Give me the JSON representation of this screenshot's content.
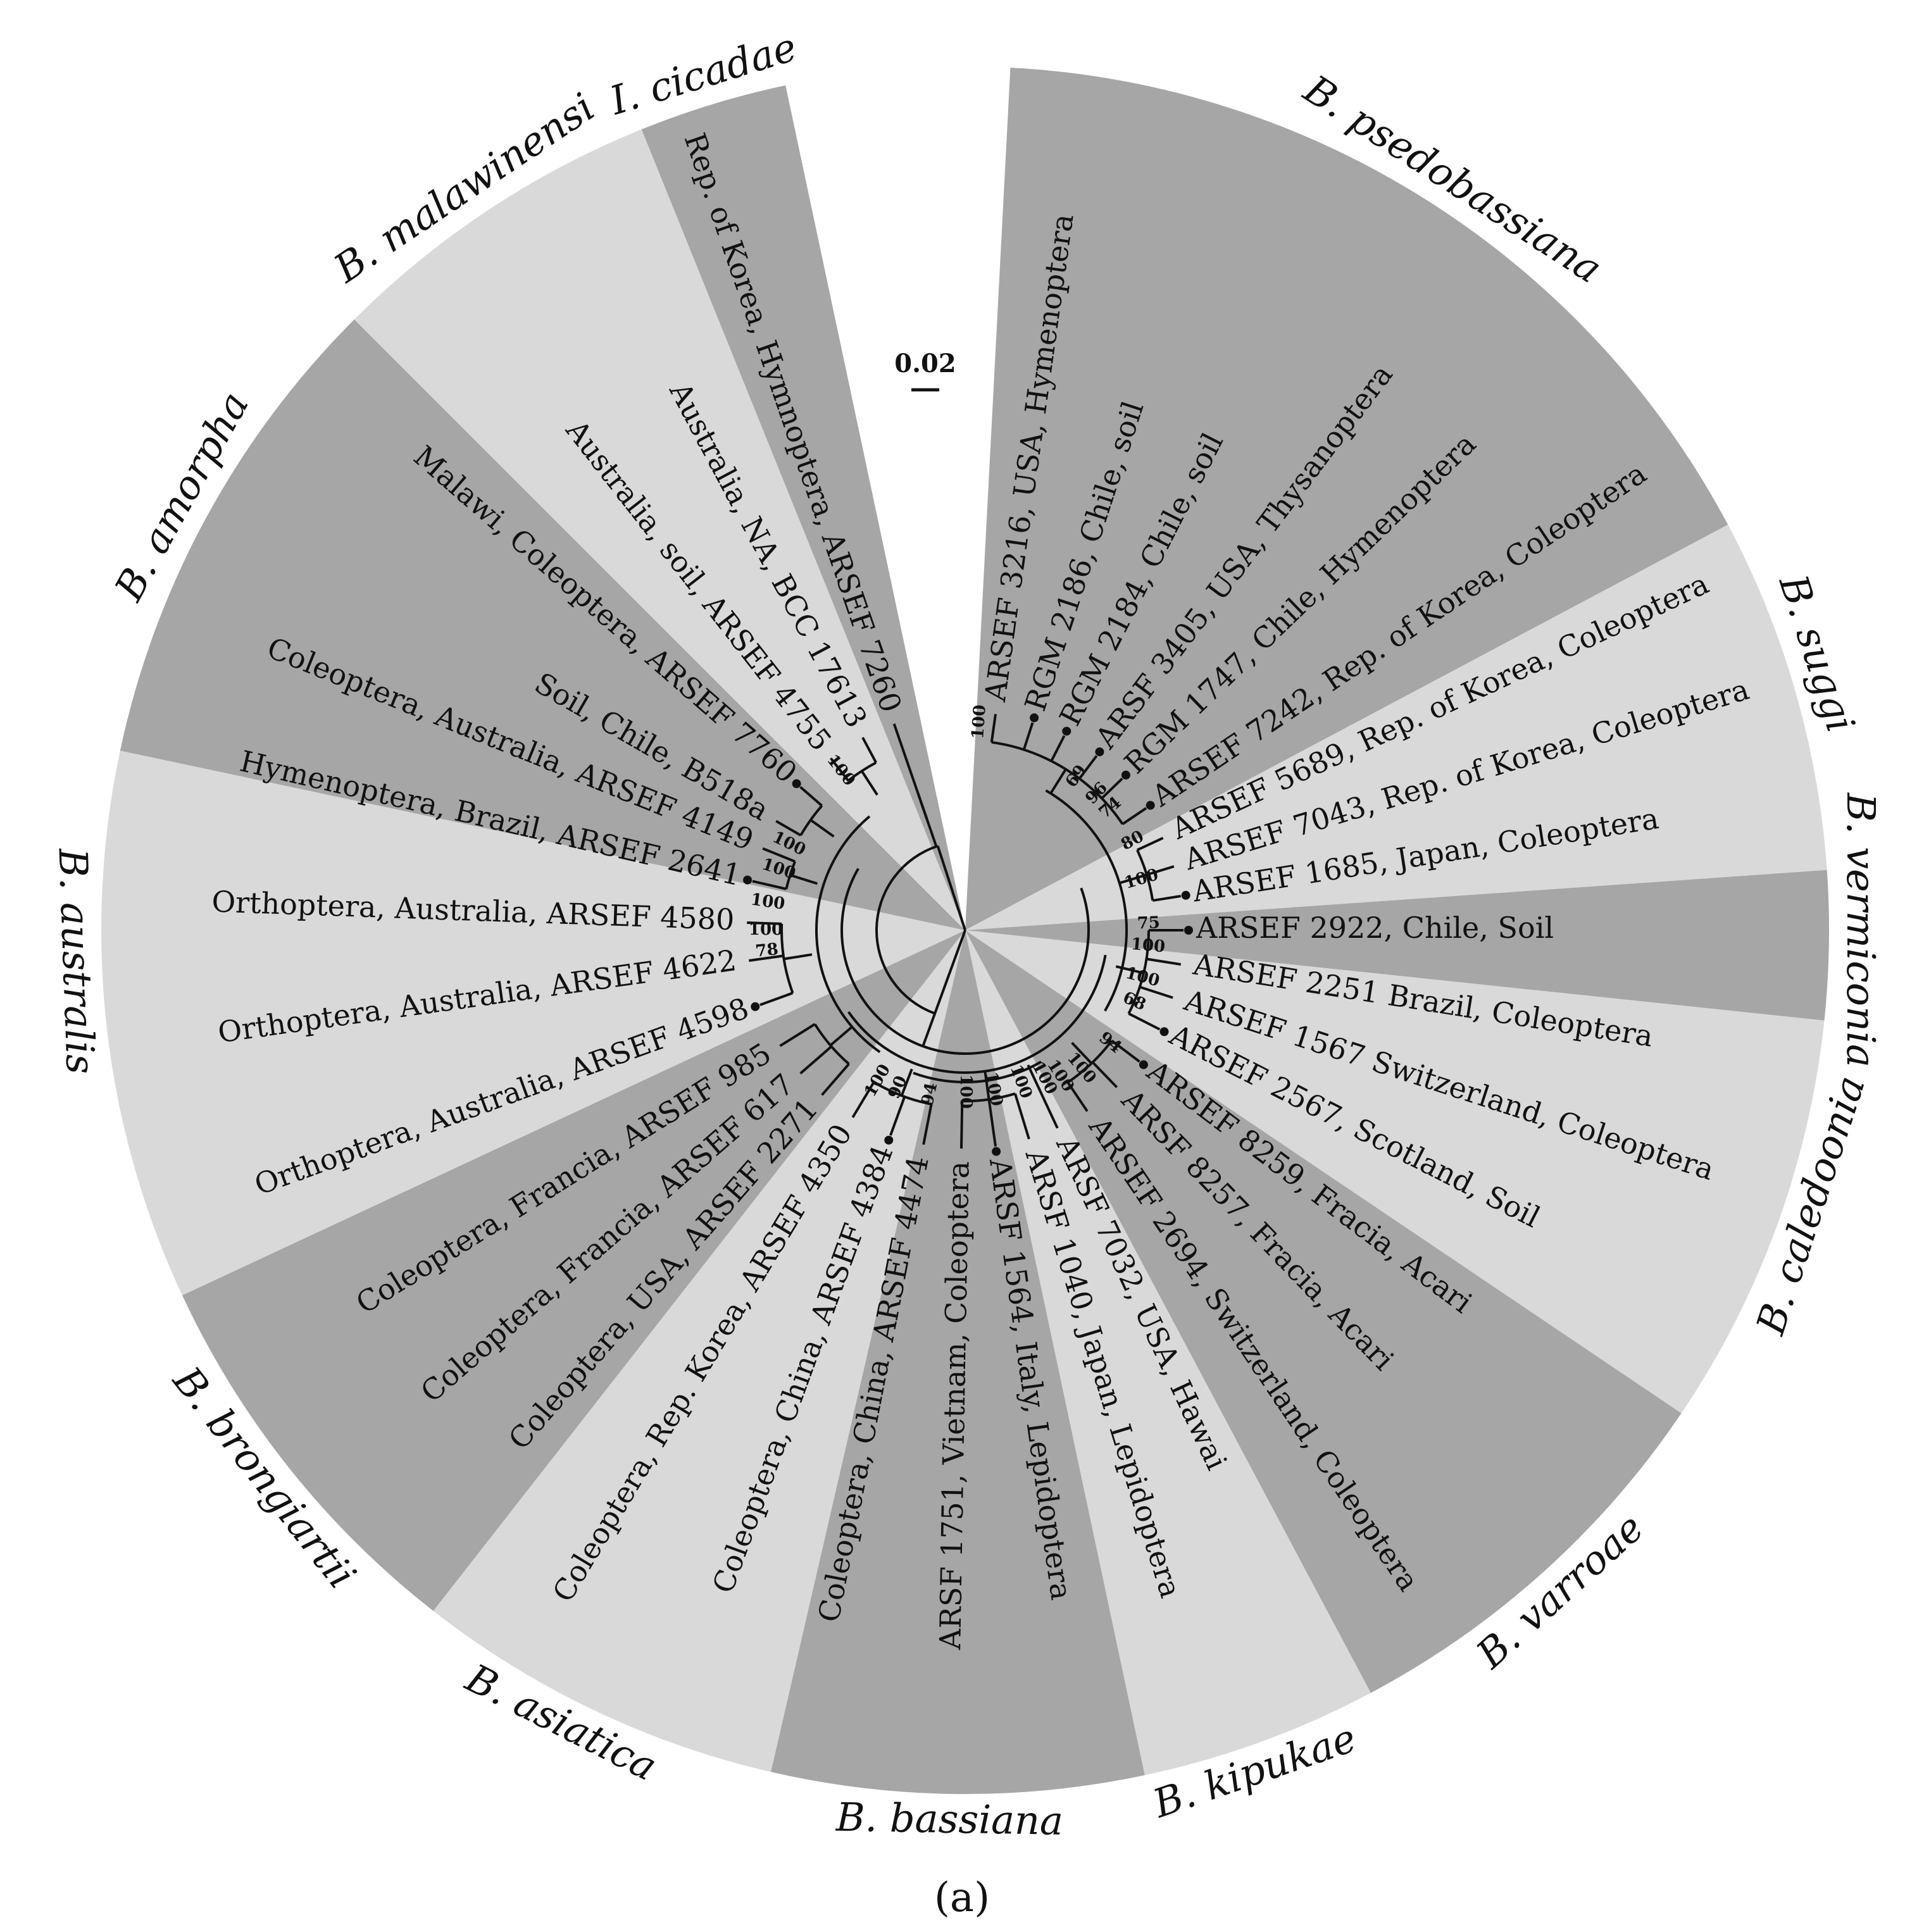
{
  "scale_bar": {
    "label": "0.02"
  },
  "panel_label": "(a)",
  "clades": [
    {
      "name": "B. psedobassiana",
      "shade": "#a6a6a6"
    },
    {
      "name": "B. suggi",
      "shade": "#d9d9d9"
    },
    {
      "name": "B. vermiconia",
      "shade": "#a6a6a6"
    },
    {
      "name": "B. caledoonia",
      "shade": "#d9d9d9"
    },
    {
      "name": "B. varroae",
      "shade": "#a6a6a6"
    },
    {
      "name": "B. kipukae",
      "shade": "#d9d9d9"
    },
    {
      "name": "B. bassiana",
      "shade": "#a6a6a6"
    },
    {
      "name": "B. asiatica",
      "shade": "#d9d9d9"
    },
    {
      "name": "B. brongiartii",
      "shade": "#a6a6a6"
    },
    {
      "name": "B. australis",
      "shade": "#d9d9d9"
    },
    {
      "name": "B. amorpha",
      "shade": "#a6a6a6"
    },
    {
      "name": "B. malawinensi",
      "shade": "#d9d9d9"
    },
    {
      "name": "I. cicadae",
      "shade": "#a6a6a6"
    }
  ],
  "leaves": [
    {
      "label": "ARSEF 3216, USA, Hymenoptera",
      "dot": false
    },
    {
      "label": "RGM 2186, Chile, soil",
      "dot": true
    },
    {
      "label": "RGM 2184, Chile, soil",
      "dot": true
    },
    {
      "label": "ARSF 3405, USA, Thysanoptera",
      "dot": true
    },
    {
      "label": "RGM 1747, Chile, Hymenoptera",
      "dot": true
    },
    {
      "label": "ARSEF 7242, Rep. of Korea, Coleoptera",
      "dot": true
    },
    {
      "label": "ARSEF 5689, Rep. of Korea, Coleoptera",
      "dot": false
    },
    {
      "label": "ARSEF 7043, Rep. of Korea, Coleoptera",
      "dot": false
    },
    {
      "label": "ARSEF 1685, Japan, Coleoptera",
      "dot": true
    },
    {
      "label": "ARSEF 2922, Chile, Soil",
      "dot": true
    },
    {
      "label": "ARSEF 2251 Brazil, Coleoptera",
      "dot": false
    },
    {
      "label": "ARSEF 1567 Switzerland, Coleoptera",
      "dot": false
    },
    {
      "label": "ARSEF 2567, Scotland, Soil",
      "dot": true
    },
    {
      "label": "ARSEF 8259, Fracia, Acari",
      "dot": true
    },
    {
      "label": "ARSF 8257, Fracia, Acari",
      "dot": false
    },
    {
      "label": "ARSEF 2694, Switzerland, Coleoptera",
      "dot": false
    },
    {
      "label": "ARSF 7032, USA, Hawai",
      "dot": false
    },
    {
      "label": "ARSF 1040, Japan, Lepidoptera",
      "dot": false
    },
    {
      "label": "ARSF 1564, Italy, Lepidoptera",
      "dot": true
    },
    {
      "label": "ARSF 1751, Vietnam, Coleoptera",
      "dot": false
    },
    {
      "label": "Coleoptera, China, ARSEF 4474",
      "dot": false
    },
    {
      "label": "Coleoptera, China, ARSEF 4384",
      "dot": true
    },
    {
      "label": "Coleoptera, Rep. Korea, ARSEF 4350",
      "dot": false
    },
    {
      "label": "Coleoptera, USA, ARSEF 2271",
      "dot": false
    },
    {
      "label": "Coleoptera, Francia, ARSEF 617",
      "dot": false
    },
    {
      "label": "Coleoptera, Francia, ARSEF 985",
      "dot": false
    },
    {
      "label": "Orthoptera, Australia, ARSEF 4598",
      "dot": true
    },
    {
      "label": "Orthoptera, Australia, ARSEF 4622",
      "dot": false
    },
    {
      "label": "Orthoptera, Australia, ARSEF 4580",
      "dot": false
    },
    {
      "label": "Hymenoptera, Brazil, ARSEF 2641",
      "dot": true
    },
    {
      "label": "Coleoptera, Australia, ARSEF 4149",
      "dot": false
    },
    {
      "label": "Soil, Chile, B518a",
      "dot": false
    },
    {
      "label": "Malawi, Coleoptera, ARSEF 7760",
      "dot": true
    },
    {
      "label": "Australia, soil, ARSEF 4755",
      "dot": false
    },
    {
      "label": "Australia, NA, BCC 17613",
      "dot": false
    },
    {
      "label": "Rep. of Korea, Hymnoptera, ARSEF 7260",
      "dot": false
    }
  ],
  "bootstrap": [
    "100",
    "69",
    "96",
    "74",
    "80",
    "100",
    "75",
    "100",
    "100",
    "68",
    "94",
    "100",
    "100",
    "100",
    "100",
    "100",
    "100",
    "94",
    "90",
    "100",
    "78",
    "100",
    "100",
    "100",
    "100",
    "100"
  ]
}
